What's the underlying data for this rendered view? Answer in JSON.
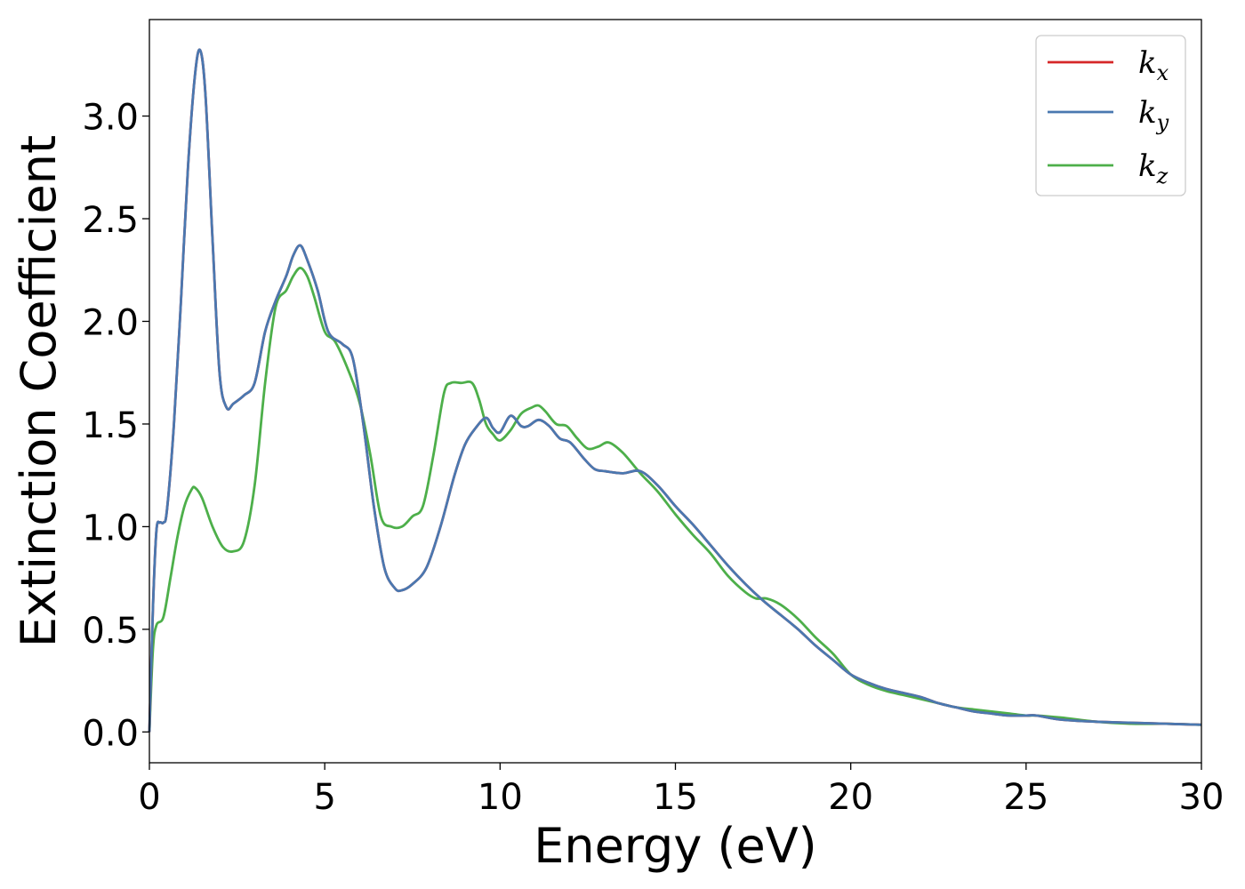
{
  "chart_data": {
    "type": "line",
    "title": "",
    "xlabel": "Energy (eV)",
    "ylabel": "Extinction Coefficient",
    "xlim": [
      0,
      30
    ],
    "ylim": [
      -0.15,
      3.47
    ],
    "xticks": [
      0,
      5,
      10,
      15,
      20,
      25,
      30
    ],
    "xtick_labels": [
      "0",
      "5",
      "10",
      "15",
      "20",
      "25",
      "30"
    ],
    "yticks": [
      0.0,
      0.5,
      1.0,
      1.5,
      2.0,
      2.5,
      3.0
    ],
    "ytick_labels": [
      "0.0",
      "0.5",
      "1.0",
      "1.5",
      "2.0",
      "2.5",
      "3.0"
    ],
    "grid": false,
    "legend_position": "top-right",
    "series": [
      {
        "name": "k",
        "subscript": "x",
        "color": "#d62728",
        "x": [
          0,
          0.1,
          0.2,
          0.3,
          0.4,
          0.5,
          0.7,
          0.9,
          1.1,
          1.3,
          1.45,
          1.6,
          1.8,
          2.0,
          2.2,
          2.4,
          2.7,
          3.0,
          3.3,
          3.6,
          3.9,
          4.1,
          4.3,
          4.5,
          4.8,
          5.1,
          5.5,
          5.8,
          6.1,
          6.4,
          6.7,
          7.0,
          7.2,
          7.5,
          7.9,
          8.3,
          8.7,
          9.0,
          9.3,
          9.6,
          9.8,
          10.0,
          10.3,
          10.6,
          10.8,
          11.1,
          11.4,
          11.7,
          12.0,
          12.4,
          12.7,
          13.0,
          13.5,
          14.0,
          14.5,
          15.0,
          15.5,
          16.0,
          16.5,
          17.0,
          17.5,
          18.0,
          18.5,
          19.0,
          19.5,
          20.0,
          20.5,
          21.0,
          21.5,
          22.0,
          22.5,
          23.0,
          23.5,
          24.0,
          24.5,
          25.0,
          25.3,
          26.0,
          27.0,
          28.0,
          29.0,
          30.0
        ],
        "y": [
          0.0,
          0.6,
          0.98,
          1.02,
          1.02,
          1.08,
          1.5,
          2.1,
          2.75,
          3.2,
          3.32,
          3.1,
          2.4,
          1.75,
          1.58,
          1.6,
          1.64,
          1.7,
          1.95,
          2.1,
          2.22,
          2.32,
          2.37,
          2.3,
          2.15,
          1.95,
          1.89,
          1.82,
          1.5,
          1.1,
          0.8,
          0.7,
          0.69,
          0.72,
          0.8,
          1.0,
          1.25,
          1.4,
          1.48,
          1.53,
          1.48,
          1.46,
          1.54,
          1.49,
          1.49,
          1.52,
          1.49,
          1.43,
          1.41,
          1.33,
          1.28,
          1.27,
          1.26,
          1.27,
          1.2,
          1.1,
          1.01,
          0.91,
          0.81,
          0.72,
          0.64,
          0.57,
          0.5,
          0.42,
          0.35,
          0.28,
          0.24,
          0.21,
          0.19,
          0.17,
          0.14,
          0.12,
          0.1,
          0.09,
          0.08,
          0.08,
          0.08,
          0.06,
          0.05,
          0.045,
          0.04,
          0.035
        ]
      },
      {
        "name": "k",
        "subscript": "y",
        "color": "#4a78b0",
        "x": [
          0,
          0.1,
          0.2,
          0.3,
          0.4,
          0.5,
          0.7,
          0.9,
          1.1,
          1.3,
          1.45,
          1.6,
          1.8,
          2.0,
          2.2,
          2.4,
          2.7,
          3.0,
          3.3,
          3.6,
          3.9,
          4.1,
          4.3,
          4.5,
          4.8,
          5.1,
          5.5,
          5.8,
          6.1,
          6.4,
          6.7,
          7.0,
          7.2,
          7.5,
          7.9,
          8.3,
          8.7,
          9.0,
          9.3,
          9.6,
          9.8,
          10.0,
          10.3,
          10.6,
          10.8,
          11.1,
          11.4,
          11.7,
          12.0,
          12.4,
          12.7,
          13.0,
          13.5,
          14.0,
          14.5,
          15.0,
          15.5,
          16.0,
          16.5,
          17.0,
          17.5,
          18.0,
          18.5,
          19.0,
          19.5,
          20.0,
          20.5,
          21.0,
          21.5,
          22.0,
          22.5,
          23.0,
          23.5,
          24.0,
          24.5,
          25.0,
          25.3,
          26.0,
          27.0,
          28.0,
          29.0,
          30.0
        ],
        "y": [
          0.0,
          0.6,
          0.98,
          1.02,
          1.02,
          1.08,
          1.5,
          2.1,
          2.75,
          3.2,
          3.32,
          3.1,
          2.4,
          1.75,
          1.58,
          1.6,
          1.64,
          1.7,
          1.95,
          2.1,
          2.22,
          2.32,
          2.37,
          2.3,
          2.15,
          1.95,
          1.89,
          1.82,
          1.5,
          1.1,
          0.8,
          0.7,
          0.69,
          0.72,
          0.8,
          1.0,
          1.25,
          1.4,
          1.48,
          1.53,
          1.48,
          1.46,
          1.54,
          1.49,
          1.49,
          1.52,
          1.49,
          1.43,
          1.41,
          1.33,
          1.28,
          1.27,
          1.26,
          1.27,
          1.2,
          1.1,
          1.01,
          0.91,
          0.81,
          0.72,
          0.64,
          0.57,
          0.5,
          0.42,
          0.35,
          0.28,
          0.24,
          0.21,
          0.19,
          0.17,
          0.14,
          0.12,
          0.1,
          0.09,
          0.08,
          0.08,
          0.08,
          0.06,
          0.05,
          0.045,
          0.04,
          0.035
        ]
      },
      {
        "name": "k",
        "subscript": "z",
        "color": "#4daf4a",
        "x": [
          0,
          0.1,
          0.2,
          0.4,
          0.6,
          0.8,
          1.0,
          1.2,
          1.3,
          1.5,
          1.8,
          2.1,
          2.4,
          2.7,
          3.0,
          3.3,
          3.6,
          3.9,
          4.1,
          4.3,
          4.5,
          4.7,
          5.0,
          5.3,
          5.7,
          6.0,
          6.3,
          6.6,
          6.9,
          7.2,
          7.5,
          7.8,
          8.1,
          8.4,
          8.6,
          8.9,
          9.2,
          9.4,
          9.6,
          9.8,
          10.0,
          10.3,
          10.6,
          10.9,
          11.1,
          11.3,
          11.6,
          11.9,
          12.2,
          12.5,
          12.8,
          13.1,
          13.5,
          14.0,
          14.5,
          15.0,
          15.5,
          16.0,
          16.5,
          17.0,
          17.3,
          17.6,
          18.0,
          18.5,
          19.0,
          19.5,
          20.0,
          20.5,
          21.0,
          21.5,
          22.0,
          22.5,
          23.0,
          23.5,
          24.0,
          24.5,
          25.0,
          25.3,
          26.0,
          27.0,
          28.0,
          29.0,
          30.0
        ],
        "y": [
          0.0,
          0.4,
          0.52,
          0.56,
          0.75,
          0.95,
          1.1,
          1.18,
          1.19,
          1.14,
          1.0,
          0.9,
          0.88,
          0.93,
          1.2,
          1.7,
          2.07,
          2.15,
          2.22,
          2.26,
          2.22,
          2.12,
          1.95,
          1.9,
          1.75,
          1.6,
          1.35,
          1.05,
          1.0,
          1.0,
          1.05,
          1.1,
          1.35,
          1.65,
          1.7,
          1.7,
          1.7,
          1.62,
          1.5,
          1.45,
          1.42,
          1.47,
          1.55,
          1.58,
          1.59,
          1.56,
          1.5,
          1.49,
          1.43,
          1.38,
          1.39,
          1.41,
          1.36,
          1.26,
          1.17,
          1.06,
          0.96,
          0.87,
          0.76,
          0.68,
          0.65,
          0.65,
          0.62,
          0.55,
          0.46,
          0.38,
          0.28,
          0.23,
          0.2,
          0.18,
          0.16,
          0.14,
          0.12,
          0.11,
          0.1,
          0.09,
          0.08,
          0.08,
          0.07,
          0.05,
          0.04,
          0.04,
          0.035
        ]
      }
    ]
  }
}
